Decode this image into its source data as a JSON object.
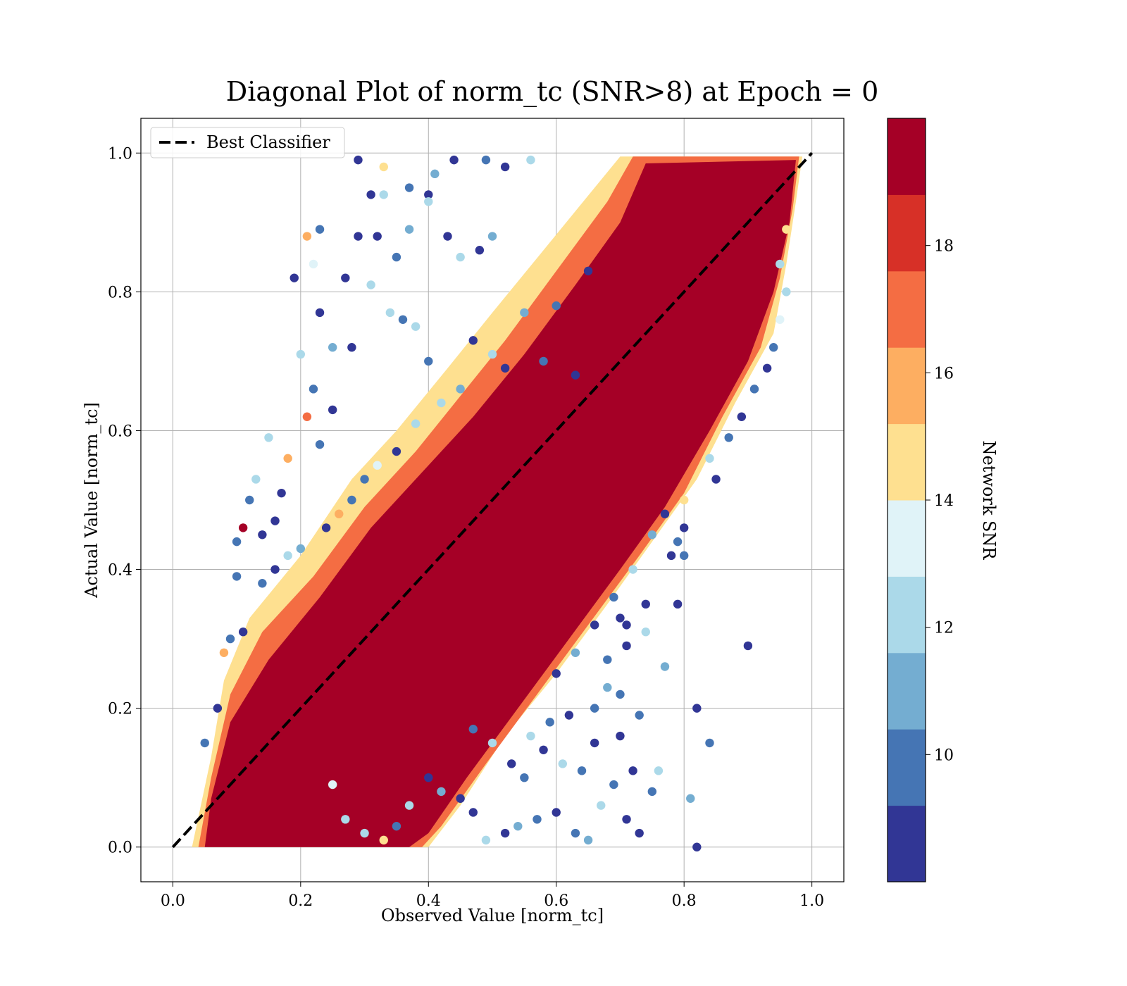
{
  "chart_data": {
    "type": "scatter",
    "title": "Diagonal Plot of norm_tc (SNR>8) at Epoch = 0",
    "xlabel": "Observed Value [norm_tc]",
    "ylabel": "Actual Value [norm_tc]",
    "xlim": [
      -0.05,
      1.05
    ],
    "ylim": [
      -0.05,
      1.05
    ],
    "xticks": [
      "0.0",
      "0.2",
      "0.4",
      "0.6",
      "0.8",
      "1.0"
    ],
    "yticks": [
      "0.0",
      "0.2",
      "0.4",
      "0.6",
      "0.8",
      "1.0"
    ],
    "grid": true,
    "legend": {
      "position": "top-left",
      "entries": [
        {
          "label": "Best Classifier",
          "style": "dashed",
          "color": "#000000"
        }
      ]
    },
    "reference_line": {
      "x": [
        0.0,
        1.0
      ],
      "y": [
        0.0,
        1.0
      ],
      "label": "Best Classifier"
    },
    "colorbar": {
      "label": "Network SNR",
      "min": 8,
      "max": 20,
      "ticks": [
        "10",
        "12",
        "14",
        "16",
        "18"
      ],
      "bins": [
        {
          "from": 8,
          "to": 9.2,
          "color": "#313695"
        },
        {
          "from": 9.2,
          "to": 10.4,
          "color": "#4575b4"
        },
        {
          "from": 10.4,
          "to": 11.6,
          "color": "#74add1"
        },
        {
          "from": 11.6,
          "to": 12.8,
          "color": "#abd9e9"
        },
        {
          "from": 12.8,
          "to": 14.0,
          "color": "#e0f3f8"
        },
        {
          "from": 14.0,
          "to": 15.2,
          "color": "#fee090"
        },
        {
          "from": 15.2,
          "to": 16.4,
          "color": "#fdae61"
        },
        {
          "from": 16.4,
          "to": 17.6,
          "color": "#f46d43"
        },
        {
          "from": 17.6,
          "to": 18.8,
          "color": "#d73027"
        },
        {
          "from": 18.8,
          "to": 20.0,
          "color": "#a50026"
        }
      ]
    },
    "points": [
      [
        0.29,
        0.99,
        8.5
      ],
      [
        0.33,
        0.98,
        14.2
      ],
      [
        0.31,
        0.94,
        8.6
      ],
      [
        0.33,
        0.94,
        12.0
      ],
      [
        0.4,
        0.94,
        8.7
      ],
      [
        0.4,
        0.93,
        12.4
      ],
      [
        0.37,
        0.95,
        9.3
      ],
      [
        0.41,
        0.97,
        11.0
      ],
      [
        0.44,
        0.99,
        8.5
      ],
      [
        0.49,
        0.99,
        10.1
      ],
      [
        0.56,
        0.99,
        12.2
      ],
      [
        0.52,
        0.98,
        8.5
      ],
      [
        0.21,
        0.88,
        15.8
      ],
      [
        0.23,
        0.89,
        9.8
      ],
      [
        0.22,
        0.84,
        13.6
      ],
      [
        0.19,
        0.82,
        8.6
      ],
      [
        0.29,
        0.88,
        8.5
      ],
      [
        0.32,
        0.88,
        8.6
      ],
      [
        0.35,
        0.85,
        10.2
      ],
      [
        0.37,
        0.89,
        11.2
      ],
      [
        0.43,
        0.88,
        8.5
      ],
      [
        0.45,
        0.85,
        11.8
      ],
      [
        0.48,
        0.86,
        9.1
      ],
      [
        0.5,
        0.88,
        10.4
      ],
      [
        0.23,
        0.77,
        8.5
      ],
      [
        0.27,
        0.82,
        8.6
      ],
      [
        0.31,
        0.81,
        11.8
      ],
      [
        0.34,
        0.77,
        12.0
      ],
      [
        0.36,
        0.76,
        10.2
      ],
      [
        0.38,
        0.75,
        12.3
      ],
      [
        0.25,
        0.72,
        11.4
      ],
      [
        0.28,
        0.72,
        8.5
      ],
      [
        0.2,
        0.71,
        12.6
      ],
      [
        0.22,
        0.66,
        9.3
      ],
      [
        0.25,
        0.63,
        8.6
      ],
      [
        0.21,
        0.62,
        16.5
      ],
      [
        0.23,
        0.58,
        10.1
      ],
      [
        0.15,
        0.59,
        12.0
      ],
      [
        0.18,
        0.56,
        15.6
      ],
      [
        0.13,
        0.53,
        12.3
      ],
      [
        0.12,
        0.5,
        9.8
      ],
      [
        0.11,
        0.46,
        18.9
      ],
      [
        0.1,
        0.44,
        10.2
      ],
      [
        0.17,
        0.51,
        8.6
      ],
      [
        0.14,
        0.45,
        8.6
      ],
      [
        0.16,
        0.47,
        8.5
      ],
      [
        0.14,
        0.38,
        9.4
      ],
      [
        0.1,
        0.39,
        9.2
      ],
      [
        0.11,
        0.31,
        8.5
      ],
      [
        0.09,
        0.3,
        9.5
      ],
      [
        0.08,
        0.28,
        15.2
      ],
      [
        0.07,
        0.2,
        8.5
      ],
      [
        0.05,
        0.15,
        10.1
      ],
      [
        0.63,
        0.68,
        8.5
      ],
      [
        0.65,
        0.83,
        8.6
      ],
      [
        0.6,
        0.78,
        9.3
      ],
      [
        0.55,
        0.77,
        11.2
      ],
      [
        0.58,
        0.7,
        9.8
      ],
      [
        0.52,
        0.69,
        8.5
      ],
      [
        0.5,
        0.71,
        12.4
      ],
      [
        0.47,
        0.73,
        8.6
      ],
      [
        0.45,
        0.66,
        10.4
      ],
      [
        0.42,
        0.64,
        12.0
      ],
      [
        0.4,
        0.7,
        9.2
      ],
      [
        0.38,
        0.61,
        11.6
      ],
      [
        0.35,
        0.57,
        8.5
      ],
      [
        0.32,
        0.55,
        13.4
      ],
      [
        0.3,
        0.53,
        10.1
      ],
      [
        0.28,
        0.5,
        9.6
      ],
      [
        0.26,
        0.48,
        15.4
      ],
      [
        0.24,
        0.46,
        8.6
      ],
      [
        0.2,
        0.43,
        10.8
      ],
      [
        0.18,
        0.42,
        12.2
      ],
      [
        0.16,
        0.4,
        9.0
      ],
      [
        0.9,
        0.29,
        8.5
      ],
      [
        0.82,
        0.2,
        8.6
      ],
      [
        0.84,
        0.15,
        9.6
      ],
      [
        0.81,
        0.07,
        10.8
      ],
      [
        0.82,
        0.0,
        8.5
      ],
      [
        0.73,
        0.02,
        8.6
      ],
      [
        0.75,
        0.08,
        9.8
      ],
      [
        0.76,
        0.11,
        11.8
      ],
      [
        0.73,
        0.19,
        10.1
      ],
      [
        0.7,
        0.22,
        9.6
      ],
      [
        0.68,
        0.27,
        9.2
      ],
      [
        0.7,
        0.33,
        8.5
      ],
      [
        0.71,
        0.32,
        8.5
      ],
      [
        0.74,
        0.35,
        8.5
      ],
      [
        0.77,
        0.26,
        11.0
      ],
      [
        0.79,
        0.35,
        8.6
      ],
      [
        0.78,
        0.42,
        8.5
      ],
      [
        0.8,
        0.42,
        10.0
      ],
      [
        0.79,
        0.44,
        9.2
      ],
      [
        0.8,
        0.46,
        8.5
      ],
      [
        0.8,
        0.5,
        14.2
      ],
      [
        0.85,
        0.53,
        8.6
      ],
      [
        0.84,
        0.56,
        12.0
      ],
      [
        0.87,
        0.59,
        9.4
      ],
      [
        0.89,
        0.62,
        8.6
      ],
      [
        0.91,
        0.66,
        9.8
      ],
      [
        0.93,
        0.69,
        8.5
      ],
      [
        0.94,
        0.72,
        10.1
      ],
      [
        0.95,
        0.76,
        13.6
      ],
      [
        0.96,
        0.8,
        11.8
      ],
      [
        0.95,
        0.84,
        12.2
      ],
      [
        0.96,
        0.89,
        14.5
      ],
      [
        0.65,
        0.01,
        11.4
      ],
      [
        0.63,
        0.02,
        9.8
      ],
      [
        0.6,
        0.05,
        8.5
      ],
      [
        0.57,
        0.04,
        9.3
      ],
      [
        0.54,
        0.03,
        10.4
      ],
      [
        0.52,
        0.02,
        8.6
      ],
      [
        0.49,
        0.01,
        12.2
      ],
      [
        0.47,
        0.05,
        9.0
      ],
      [
        0.45,
        0.07,
        8.6
      ],
      [
        0.42,
        0.08,
        11.1
      ],
      [
        0.4,
        0.1,
        8.5
      ],
      [
        0.37,
        0.06,
        12.6
      ],
      [
        0.35,
        0.03,
        9.6
      ],
      [
        0.33,
        0.01,
        14.0
      ],
      [
        0.3,
        0.02,
        11.8
      ],
      [
        0.27,
        0.04,
        12.3
      ],
      [
        0.25,
        0.09,
        13.6
      ],
      [
        0.55,
        0.1,
        10.2
      ],
      [
        0.58,
        0.14,
        8.5
      ],
      [
        0.61,
        0.12,
        12.1
      ],
      [
        0.64,
        0.11,
        9.9
      ],
      [
        0.66,
        0.15,
        8.6
      ],
      [
        0.62,
        0.19,
        8.5
      ],
      [
        0.59,
        0.18,
        10.2
      ],
      [
        0.56,
        0.16,
        11.6
      ],
      [
        0.53,
        0.12,
        8.5
      ],
      [
        0.5,
        0.15,
        12.6
      ],
      [
        0.47,
        0.17,
        9.4
      ],
      [
        0.6,
        0.25,
        8.5
      ],
      [
        0.63,
        0.28,
        10.4
      ],
      [
        0.66,
        0.32,
        8.5
      ],
      [
        0.69,
        0.36,
        9.6
      ],
      [
        0.72,
        0.4,
        12.2
      ],
      [
        0.75,
        0.45,
        10.6
      ],
      [
        0.77,
        0.48,
        9.0
      ],
      [
        0.68,
        0.23,
        11.2
      ],
      [
        0.71,
        0.29,
        8.6
      ],
      [
        0.74,
        0.31,
        12.0
      ],
      [
        0.66,
        0.2,
        9.2
      ],
      [
        0.7,
        0.16,
        8.5
      ],
      [
        0.72,
        0.11,
        8.6
      ],
      [
        0.69,
        0.09,
        9.7
      ],
      [
        0.67,
        0.06,
        12.5
      ],
      [
        0.71,
        0.04,
        8.5
      ]
    ]
  }
}
